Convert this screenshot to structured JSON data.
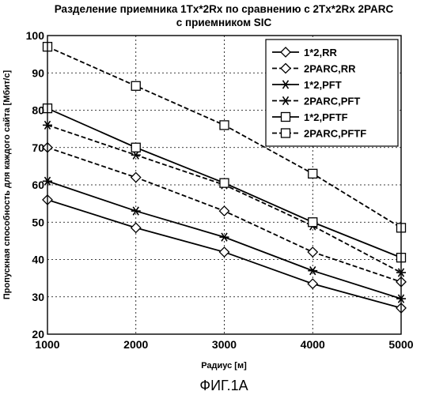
{
  "chart_data": {
    "type": "line",
    "title_line1": "Разделение приемника 1Tx*2Rx по сравнению с 2Tx*2Rx 2PARC",
    "title_line2": "с приемником SIC",
    "xlabel": "Радиус [м]",
    "ylabel": "Пропускная способность для каждого сайта [Мбит/с]",
    "xlim": [
      1000,
      5000
    ],
    "ylim": [
      20,
      100
    ],
    "xticks": [
      1000,
      2000,
      3000,
      4000,
      5000
    ],
    "yticks": [
      20,
      30,
      40,
      50,
      60,
      70,
      80,
      90,
      100
    ],
    "grid": true,
    "legend_position": "top-right",
    "x": [
      1000,
      2000,
      3000,
      4000,
      5000
    ],
    "series": [
      {
        "name": "1*2,RR",
        "values": [
          56,
          48.5,
          42,
          33.5,
          27
        ],
        "marker": "diamond",
        "style": "solid"
      },
      {
        "name": "2PARC,RR",
        "values": [
          70,
          62,
          53,
          42,
          34
        ],
        "marker": "diamond",
        "style": "dashed"
      },
      {
        "name": "1*2,PFT",
        "values": [
          61,
          53,
          46,
          37,
          29.5
        ],
        "marker": "asterisk",
        "style": "solid"
      },
      {
        "name": "2PARC,PFT",
        "values": [
          76,
          68,
          60,
          49,
          36.5
        ],
        "marker": "asterisk",
        "style": "dashed"
      },
      {
        "name": "1*2,PFTF",
        "values": [
          80.5,
          70,
          60.5,
          50,
          40.5
        ],
        "marker": "square",
        "style": "solid"
      },
      {
        "name": "2PARC,PFTF",
        "values": [
          97,
          86.5,
          76,
          63,
          48.5
        ],
        "marker": "square",
        "style": "dashed"
      }
    ]
  },
  "caption": "ФИГ.1A"
}
